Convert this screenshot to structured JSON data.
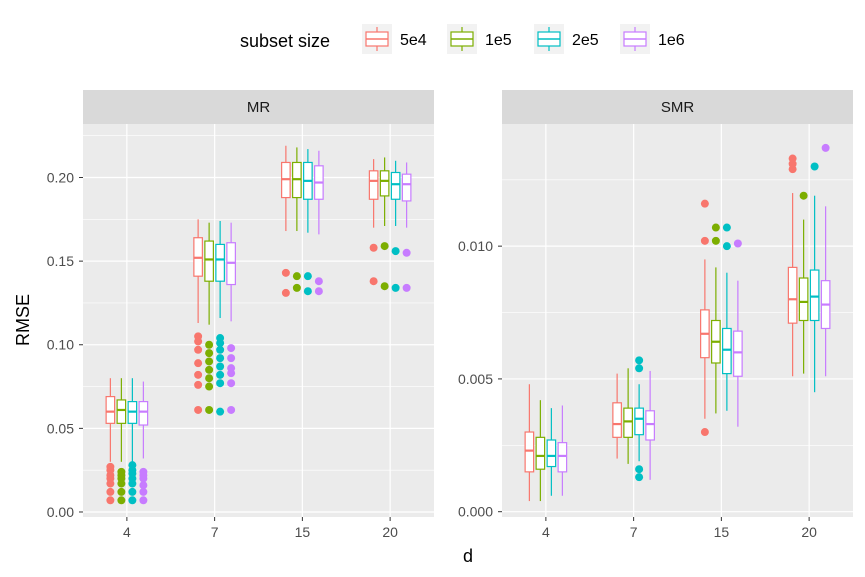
{
  "legend": {
    "title": "subset size",
    "entries": [
      {
        "label": "5e4",
        "color": "#F8766D"
      },
      {
        "label": "1e5",
        "color": "#7CAE00"
      },
      {
        "label": "2e5",
        "color": "#00BFC4"
      },
      {
        "label": "1e6",
        "color": "#C77CFF"
      }
    ]
  },
  "axes": {
    "xlabel": "d",
    "ylabel": "RMSE"
  },
  "chart_data": [
    {
      "type": "boxplot",
      "title": "MR",
      "categories": [
        "4",
        "7",
        "15",
        "20"
      ],
      "ylim": [
        -0.003,
        0.232
      ],
      "yticks": [
        0.0,
        0.05,
        0.1,
        0.15,
        0.2
      ],
      "ytick_labels": [
        "0.00",
        "0.05",
        "0.10",
        "0.15",
        "0.20"
      ],
      "series": [
        {
          "name": "5e4",
          "boxes": [
            {
              "min": 0.03,
              "q1": 0.053,
              "median": 0.06,
              "q3": 0.069,
              "max": 0.08,
              "outliers": [
                0.007,
                0.012,
                0.017,
                0.02,
                0.022,
                0.025,
                0.027
              ]
            },
            {
              "min": 0.113,
              "q1": 0.141,
              "median": 0.152,
              "q3": 0.164,
              "max": 0.175,
              "outliers": [
                0.061,
                0.076,
                0.082,
                0.089,
                0.097,
                0.102,
                0.105
              ]
            },
            {
              "min": 0.168,
              "q1": 0.188,
              "median": 0.199,
              "q3": 0.209,
              "max": 0.219,
              "outliers": [
                0.131,
                0.143
              ]
            },
            {
              "min": 0.17,
              "q1": 0.187,
              "median": 0.198,
              "q3": 0.204,
              "max": 0.211,
              "outliers": [
                0.138,
                0.158
              ]
            }
          ]
        },
        {
          "name": "1e5",
          "boxes": [
            {
              "min": 0.03,
              "q1": 0.053,
              "median": 0.061,
              "q3": 0.067,
              "max": 0.08,
              "outliers": [
                0.007,
                0.012,
                0.017,
                0.02,
                0.022,
                0.024
              ]
            },
            {
              "min": 0.112,
              "q1": 0.138,
              "median": 0.151,
              "q3": 0.162,
              "max": 0.173,
              "outliers": [
                0.061,
                0.075,
                0.08,
                0.085,
                0.09,
                0.095,
                0.1
              ]
            },
            {
              "min": 0.168,
              "q1": 0.188,
              "median": 0.199,
              "q3": 0.209,
              "max": 0.218,
              "outliers": [
                0.134,
                0.141
              ]
            },
            {
              "min": 0.171,
              "q1": 0.189,
              "median": 0.198,
              "q3": 0.204,
              "max": 0.212,
              "outliers": [
                0.135,
                0.159
              ]
            }
          ]
        },
        {
          "name": "2e5",
          "boxes": [
            {
              "min": 0.03,
              "q1": 0.053,
              "median": 0.06,
              "q3": 0.066,
              "max": 0.08,
              "outliers": [
                0.007,
                0.012,
                0.017,
                0.02,
                0.023,
                0.025,
                0.028
              ]
            },
            {
              "min": 0.116,
              "q1": 0.138,
              "median": 0.151,
              "q3": 0.16,
              "max": 0.174,
              "outliers": [
                0.06,
                0.077,
                0.082,
                0.087,
                0.092,
                0.097,
                0.101,
                0.104
              ]
            },
            {
              "min": 0.167,
              "q1": 0.187,
              "median": 0.198,
              "q3": 0.209,
              "max": 0.217,
              "outliers": [
                0.132,
                0.141
              ]
            },
            {
              "min": 0.171,
              "q1": 0.187,
              "median": 0.196,
              "q3": 0.203,
              "max": 0.21,
              "outliers": [
                0.134,
                0.156
              ]
            }
          ]
        },
        {
          "name": "1e6",
          "boxes": [
            {
              "min": 0.032,
              "q1": 0.052,
              "median": 0.06,
              "q3": 0.066,
              "max": 0.078,
              "outliers": [
                0.007,
                0.012,
                0.016,
                0.02,
                0.022,
                0.024
              ]
            },
            {
              "min": 0.114,
              "q1": 0.136,
              "median": 0.149,
              "q3": 0.161,
              "max": 0.173,
              "outliers": [
                0.061,
                0.077,
                0.083,
                0.086,
                0.092,
                0.098
              ]
            },
            {
              "min": 0.166,
              "q1": 0.187,
              "median": 0.197,
              "q3": 0.207,
              "max": 0.216,
              "outliers": [
                0.132,
                0.138
              ]
            },
            {
              "min": 0.17,
              "q1": 0.186,
              "median": 0.196,
              "q3": 0.202,
              "max": 0.209,
              "outliers": [
                0.134,
                0.155
              ]
            }
          ]
        }
      ]
    },
    {
      "type": "boxplot",
      "title": "SMR",
      "categories": [
        "4",
        "7",
        "15",
        "20"
      ],
      "ylim": [
        -0.0002,
        0.0146
      ],
      "yticks": [
        0.0,
        0.005,
        0.01
      ],
      "ytick_labels": [
        "0.000",
        "0.005",
        "0.010"
      ],
      "series": [
        {
          "name": "5e4",
          "boxes": [
            {
              "min": 0.0004,
              "q1": 0.0015,
              "median": 0.0023,
              "q3": 0.003,
              "max": 0.0048,
              "outliers": []
            },
            {
              "min": 0.002,
              "q1": 0.0028,
              "median": 0.0033,
              "q3": 0.0041,
              "max": 0.0052,
              "outliers": []
            },
            {
              "min": 0.0035,
              "q1": 0.0058,
              "median": 0.0067,
              "q3": 0.0076,
              "max": 0.0095,
              "outliers": [
                0.003,
                0.0102,
                0.0116
              ]
            },
            {
              "min": 0.0051,
              "q1": 0.0071,
              "median": 0.008,
              "q3": 0.0092,
              "max": 0.012,
              "outliers": [
                0.0129,
                0.0131,
                0.0133
              ]
            }
          ]
        },
        {
          "name": "1e5",
          "boxes": [
            {
              "min": 0.0004,
              "q1": 0.0016,
              "median": 0.0021,
              "q3": 0.0028,
              "max": 0.0042,
              "outliers": []
            },
            {
              "min": 0.0018,
              "q1": 0.0028,
              "median": 0.0034,
              "q3": 0.0039,
              "max": 0.0054,
              "outliers": []
            },
            {
              "min": 0.0037,
              "q1": 0.0056,
              "median": 0.0064,
              "q3": 0.0072,
              "max": 0.0092,
              "outliers": [
                0.0102,
                0.0107
              ]
            },
            {
              "min": 0.0052,
              "q1": 0.0072,
              "median": 0.0079,
              "q3": 0.0088,
              "max": 0.011,
              "outliers": [
                0.0119
              ]
            }
          ]
        },
        {
          "name": "2e5",
          "boxes": [
            {
              "min": 0.0006,
              "q1": 0.0017,
              "median": 0.0021,
              "q3": 0.0027,
              "max": 0.0039,
              "outliers": []
            },
            {
              "min": 0.0019,
              "q1": 0.0029,
              "median": 0.0035,
              "q3": 0.0039,
              "max": 0.0048,
              "outliers": [
                0.0013,
                0.0016,
                0.0054,
                0.0057
              ]
            },
            {
              "min": 0.0038,
              "q1": 0.0052,
              "median": 0.0061,
              "q3": 0.0069,
              "max": 0.009,
              "outliers": [
                0.01,
                0.0107
              ]
            },
            {
              "min": 0.0045,
              "q1": 0.0072,
              "median": 0.0081,
              "q3": 0.0091,
              "max": 0.0119,
              "outliers": [
                0.013
              ]
            }
          ]
        },
        {
          "name": "1e6",
          "boxes": [
            {
              "min": 0.0006,
              "q1": 0.0015,
              "median": 0.0021,
              "q3": 0.0026,
              "max": 0.004,
              "outliers": []
            },
            {
              "min": 0.0012,
              "q1": 0.0027,
              "median": 0.0033,
              "q3": 0.0038,
              "max": 0.0053,
              "outliers": []
            },
            {
              "min": 0.0032,
              "q1": 0.0051,
              "median": 0.006,
              "q3": 0.0068,
              "max": 0.0087,
              "outliers": [
                0.0101
              ]
            },
            {
              "min": 0.0051,
              "q1": 0.0069,
              "median": 0.0078,
              "q3": 0.0087,
              "max": 0.0115,
              "outliers": [
                0.0137
              ]
            }
          ]
        }
      ]
    }
  ]
}
